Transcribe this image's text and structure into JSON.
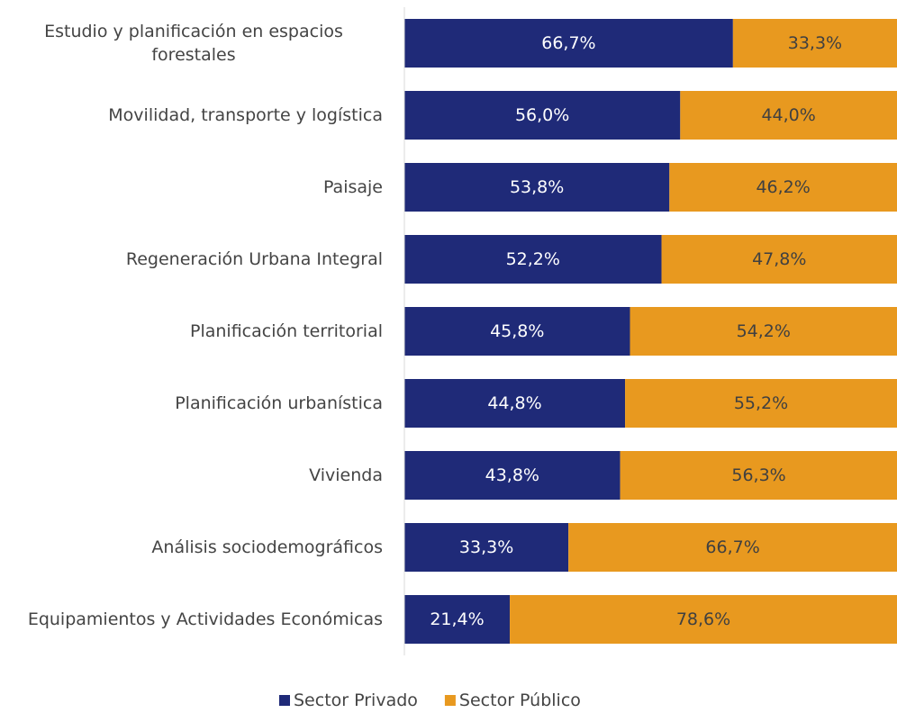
{
  "chart_data": {
    "type": "stacked-barh",
    "categories": [
      "Estudio y planificación en espacios forestales",
      "Movilidad, transporte y logística",
      "Paisaje",
      "Regeneración Urbana Integral",
      "Planificación territorial",
      "Planificación urbanística",
      "Vivienda",
      "Análisis sociodemográficos",
      "Equipamientos y Actividades Económicas"
    ],
    "series": [
      {
        "name": "Sector Privado",
        "color": "#1f2a78",
        "values": [
          66.7,
          56.0,
          53.8,
          52.2,
          45.8,
          44.8,
          43.8,
          33.3,
          21.4
        ],
        "value_labels": [
          "66,7%",
          "56,0%",
          "53,8%",
          "52,2%",
          "45,8%",
          "44,8%",
          "43,8%",
          "33,3%",
          "21,4%"
        ]
      },
      {
        "name": "Sector Público",
        "color": "#e8991f",
        "values": [
          33.3,
          44.0,
          46.2,
          47.8,
          54.2,
          55.2,
          56.3,
          66.7,
          78.6
        ],
        "value_labels": [
          "33,3%",
          "44,0%",
          "46,2%",
          "47,8%",
          "54,2%",
          "55,2%",
          "56,3%",
          "66,7%",
          "78,6%"
        ]
      }
    ],
    "xlim": [
      0,
      100
    ],
    "legend": "bottom"
  }
}
